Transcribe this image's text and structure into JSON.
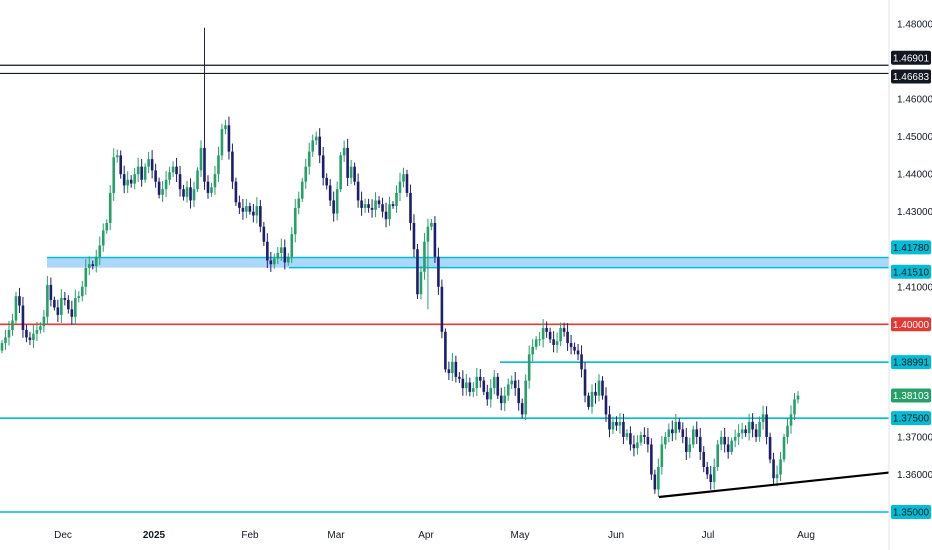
{
  "chart_data": {
    "type": "candlestick",
    "title": "",
    "xlabel": "",
    "ylabel": "",
    "ylim": [
      1.344,
      1.484
    ],
    "grid": false,
    "x_tick_labels": [
      "Dec",
      "2025",
      "Feb",
      "Mar",
      "Apr",
      "May",
      "Jun",
      "Jul",
      "Aug"
    ],
    "y_tick_labels": [
      "1.48000",
      "1.46000",
      "1.45000",
      "1.44000",
      "1.43000",
      "1.41000",
      "1.37000",
      "1.36000"
    ],
    "up_color": "#26a069",
    "down_color": "#1e1e6e",
    "close_series": [
      1.395,
      1.3965,
      1.3985,
      1.401,
      1.4075,
      1.405,
      1.3985,
      1.3965,
      1.3958,
      1.3975,
      1.3985,
      1.3995,
      1.402,
      1.4105,
      1.4065,
      1.4045,
      1.4025,
      1.407,
      1.4065,
      1.404,
      1.402,
      1.407,
      1.4075,
      1.41,
      1.415,
      1.416,
      1.4155,
      1.418,
      1.421,
      1.425,
      1.427,
      1.435,
      1.4445,
      1.445,
      1.44,
      1.437,
      1.4385,
      1.4375,
      1.44,
      1.442,
      1.4385,
      1.442,
      1.444,
      1.441,
      1.438,
      1.4345,
      1.436,
      1.4385,
      1.4405,
      1.442,
      1.44,
      1.436,
      1.434,
      1.4365,
      1.433,
      1.436,
      1.441,
      1.447,
      1.438,
      1.435,
      1.4365,
      1.44,
      1.445,
      1.452,
      1.453,
      1.446,
      1.438,
      1.4325,
      1.431,
      1.43,
      1.4315,
      1.43,
      1.429,
      1.4315,
      1.426,
      1.422,
      1.417,
      1.416,
      1.4175,
      1.419,
      1.4205,
      1.4165,
      1.418,
      1.424,
      1.431,
      1.4335,
      1.438,
      1.442,
      1.446,
      1.449,
      1.45,
      1.445,
      1.439,
      1.437,
      1.433,
      1.4295,
      1.436,
      1.445,
      1.447,
      1.439,
      1.442,
      1.438,
      1.433,
      1.431,
      1.432,
      1.431,
      1.4305,
      1.433,
      1.432,
      1.43,
      1.428,
      1.432,
      1.4315,
      1.435,
      1.438,
      1.44,
      1.435,
      1.427,
      1.42,
      1.408,
      1.414,
      1.422,
      1.426,
      1.427,
      1.418,
      1.41,
      1.398,
      1.388,
      1.387,
      1.39,
      1.386,
      1.3855,
      1.383,
      1.3845,
      1.382,
      1.383,
      1.386,
      1.385,
      1.382,
      1.38,
      1.383,
      1.386,
      1.381,
      1.379,
      1.381,
      1.384,
      1.385,
      1.383,
      1.379,
      1.376,
      1.385,
      1.392,
      1.394,
      1.396,
      1.396,
      1.399,
      1.398,
      1.396,
      1.3945,
      1.3955,
      1.399,
      1.398,
      1.395,
      1.394,
      1.393,
      1.392,
      1.388,
      1.381,
      1.378,
      1.382,
      1.381,
      1.385,
      1.381,
      1.376,
      1.372,
      1.374,
      1.373,
      1.374,
      1.37,
      1.371,
      1.368,
      1.367,
      1.3685,
      1.3705,
      1.37,
      1.368,
      1.36,
      1.356,
      1.362,
      1.368,
      1.37,
      1.372,
      1.371,
      1.374,
      1.372,
      1.37,
      1.366,
      1.368,
      1.372,
      1.37,
      1.366,
      1.362,
      1.36,
      1.358,
      1.362,
      1.368,
      1.37,
      1.368,
      1.366,
      1.369,
      1.37,
      1.371,
      1.372,
      1.371,
      1.374,
      1.372,
      1.37,
      1.374,
      1.376,
      1.37,
      1.364,
      1.359,
      1.36,
      1.364,
      1.37,
      1.373,
      1.376,
      1.38,
      1.381
    ],
    "horizontal_levels": [
      {
        "value": 1.46901,
        "label": "1.46901",
        "color": "#131722"
      },
      {
        "value": 1.46683,
        "label": "1.46683",
        "color": "#131722"
      },
      {
        "value": 1.4178,
        "label": "1.41780",
        "color": "#00bcd4"
      },
      {
        "value": 1.4151,
        "label": "1.41510",
        "color": "#00bcd4"
      },
      {
        "value": 1.4,
        "label": "1.40000",
        "color": "#e53935"
      },
      {
        "value": 1.38991,
        "label": "1.38991",
        "color": "#00bcd4"
      },
      {
        "value": 1.375,
        "label": "1.37500",
        "color": "#00bcd4"
      },
      {
        "value": 1.35,
        "label": "1.35000",
        "color": "#00bcd4"
      }
    ],
    "zone": {
      "from": 1.4151,
      "to": 1.4178,
      "color": "#90caf9"
    },
    "last_price": {
      "value": 1.38103,
      "label": "1.38103",
      "color": "#26a069"
    },
    "trendline": {
      "from": 1.354,
      "to": 1.3605
    }
  }
}
